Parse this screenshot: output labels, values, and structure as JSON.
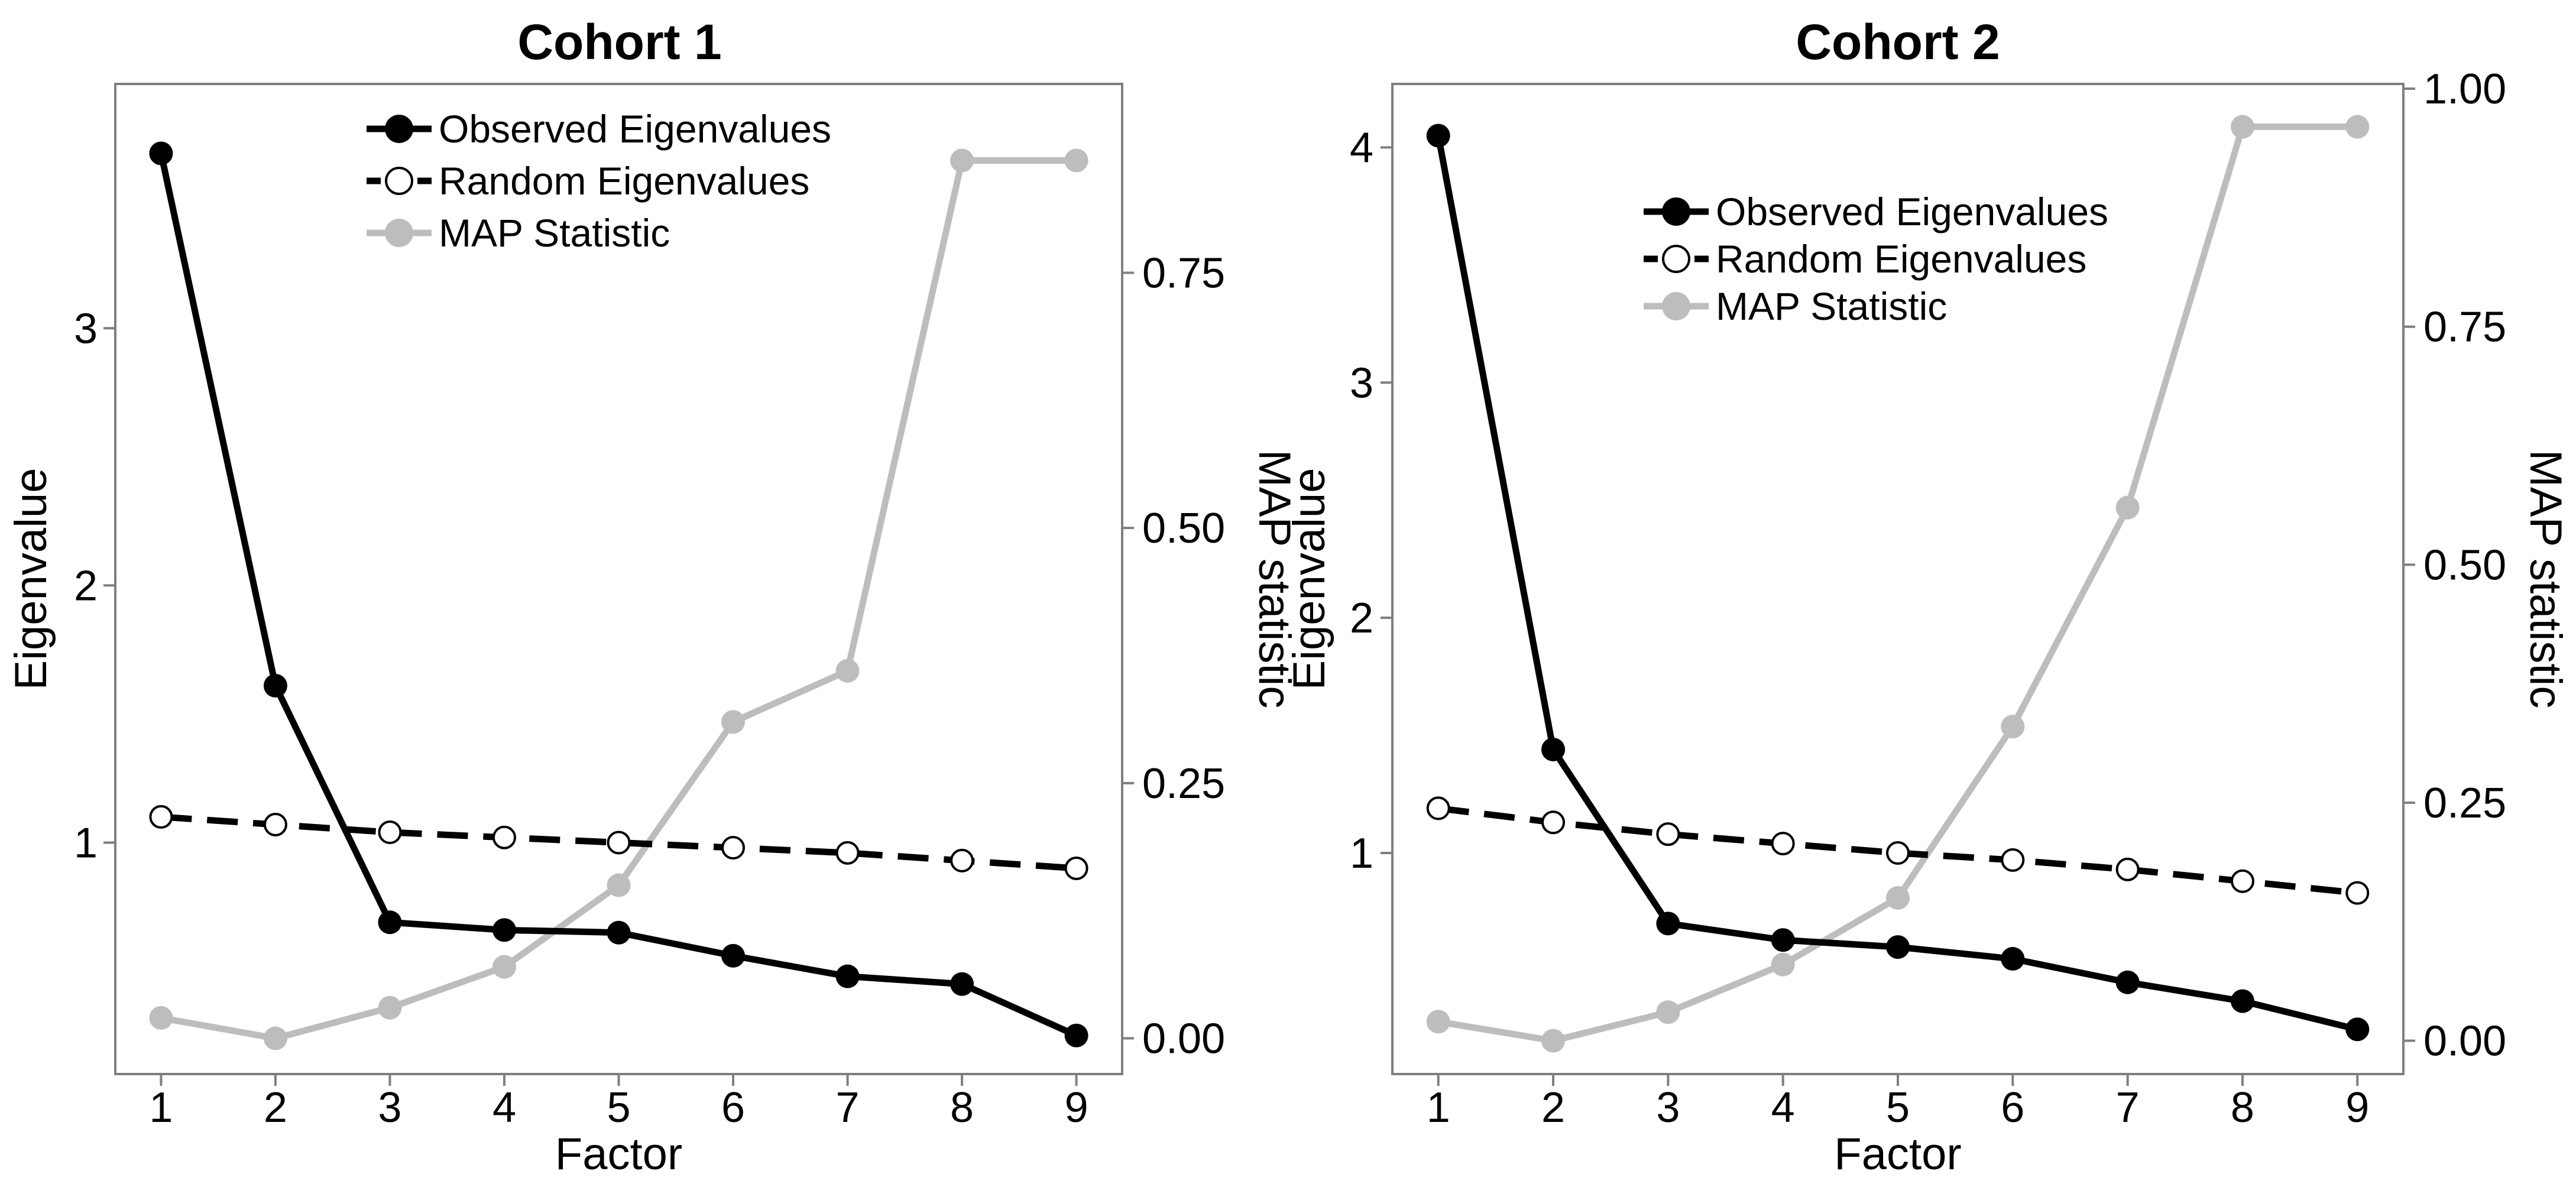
{
  "legend_labels": {
    "observed": "Observed Eigenvalues",
    "random": "Random Eigenvalues",
    "map": "MAP Statistic"
  },
  "colors": {
    "observed": "#000000",
    "random": "#000000",
    "map": "#bdbdbd",
    "frame": "#7f7f7f"
  },
  "chart_data": [
    {
      "type": "line",
      "title": "Cohort 1",
      "xlabel": "Factor",
      "ylabel": "Eigenvalue",
      "y2label": "MAP statistic",
      "x": [
        1,
        2,
        3,
        4,
        5,
        6,
        7,
        8,
        9
      ],
      "xlim": [
        0.6,
        9.4
      ],
      "ylim": [
        0.1,
        3.95
      ],
      "y2lim": [
        -0.035,
        0.935
      ],
      "yticks": [
        1,
        2,
        3
      ],
      "y2ticks": [
        0.0,
        0.25,
        0.5,
        0.75
      ],
      "y2ticklabels": [
        "0.00",
        "0.25",
        "0.50",
        "0.75"
      ],
      "grid": false,
      "legend_position": "top-center",
      "series": [
        {
          "name": "Observed Eigenvalues",
          "axis": "left",
          "style": "solid-filled",
          "values": [
            3.68,
            1.61,
            0.69,
            0.66,
            0.65,
            0.56,
            0.48,
            0.45,
            0.25
          ]
        },
        {
          "name": "Random Eigenvalues",
          "axis": "left",
          "style": "dashed-open",
          "values": [
            1.1,
            1.07,
            1.04,
            1.02,
            1.0,
            0.98,
            0.96,
            0.93,
            0.9
          ]
        },
        {
          "name": "MAP Statistic",
          "axis": "right",
          "style": "solid-grey",
          "values": [
            0.02,
            0.0,
            0.03,
            0.07,
            0.15,
            0.31,
            0.36,
            0.86,
            0.86
          ]
        }
      ]
    },
    {
      "type": "line",
      "title": "Cohort 2",
      "xlabel": "Factor",
      "ylabel": "Eigenvalue",
      "y2label": "MAP statistic",
      "x": [
        1,
        2,
        3,
        4,
        5,
        6,
        7,
        8,
        9
      ],
      "xlim": [
        0.6,
        9.4
      ],
      "ylim": [
        0.06,
        4.27
      ],
      "y2lim": [
        -0.035,
        1.005
      ],
      "yticks": [
        1,
        2,
        3,
        4
      ],
      "y2ticks": [
        0.0,
        0.25,
        0.5,
        0.75,
        1.0
      ],
      "y2ticklabels": [
        "0.00",
        "0.25",
        "0.50",
        "0.75",
        "1.00"
      ],
      "grid": false,
      "legend_position": "top-center",
      "series": [
        {
          "name": "Observed Eigenvalues",
          "axis": "left",
          "style": "solid-filled",
          "values": [
            4.05,
            1.44,
            0.7,
            0.63,
            0.6,
            0.55,
            0.45,
            0.37,
            0.25
          ]
        },
        {
          "name": "Random Eigenvalues",
          "axis": "left",
          "style": "dashed-open",
          "values": [
            1.19,
            1.13,
            1.08,
            1.04,
            1.0,
            0.97,
            0.93,
            0.88,
            0.83
          ]
        },
        {
          "name": "MAP Statistic",
          "axis": "right",
          "style": "solid-grey",
          "values": [
            0.02,
            0.0,
            0.03,
            0.08,
            0.15,
            0.33,
            0.56,
            0.96,
            0.96
          ]
        }
      ]
    }
  ]
}
